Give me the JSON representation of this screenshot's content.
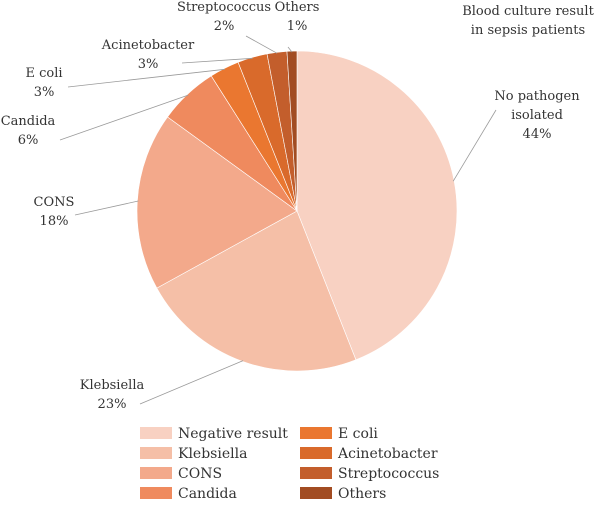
{
  "chart_data": {
    "type": "pie",
    "title": "Blood culture result in sepsis patients",
    "title_lines": [
      "Blood culture result",
      "in sepsis patients"
    ],
    "slices": [
      {
        "label": "No pathogen isolated",
        "label_lines": [
          "No pathogen",
          "isolated"
        ],
        "pct_text": "44%",
        "value": 44,
        "color": "#f8d1c2"
      },
      {
        "label": "Klebsiella",
        "label_lines": [
          "Klebsiella"
        ],
        "pct_text": "23%",
        "value": 23,
        "color": "#f5bfa7"
      },
      {
        "label": "CONS",
        "label_lines": [
          "CONS"
        ],
        "pct_text": "18%",
        "value": 18,
        "color": "#f3a98b"
      },
      {
        "label": "Candida",
        "label_lines": [
          "Candida"
        ],
        "pct_text": "6%",
        "value": 6,
        "color": "#ef8a5e"
      },
      {
        "label": "E coli",
        "label_lines": [
          "E coli"
        ],
        "pct_text": "3%",
        "value": 3,
        "color": "#ea7730"
      },
      {
        "label": "Acinetobacter",
        "label_lines": [
          "Acinetobacter"
        ],
        "pct_text": "3%",
        "value": 3,
        "color": "#d96a2b"
      },
      {
        "label": "Streptococcus",
        "label_lines": [
          "Streptococcus"
        ],
        "pct_text": "2%",
        "value": 2,
        "color": "#c35e2c"
      },
      {
        "label": "Others",
        "label_lines": [
          "Others"
        ],
        "pct_text": "1%",
        "value": 1,
        "color": "#a24c22"
      }
    ],
    "legend": {
      "placement": "bottom",
      "entries": [
        "Negative result",
        "Klebsiella",
        "CONS",
        "Candida",
        "E coli",
        "Acinetobacter",
        "Streptococcus",
        "Others"
      ]
    }
  }
}
